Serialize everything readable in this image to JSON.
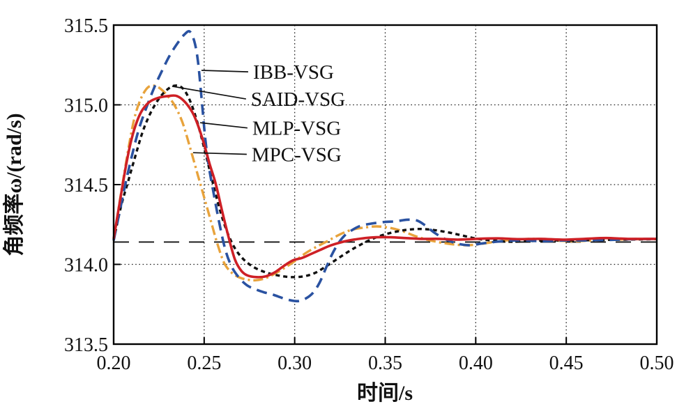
{
  "chart_data": {
    "type": "line",
    "title": "",
    "xlabel": "时间/s",
    "ylabel": "角频率ω/(rad/s)",
    "xlim": [
      0.2,
      0.5
    ],
    "ylim": [
      313.5,
      315.5
    ],
    "xticks": [
      0.2,
      0.25,
      0.3,
      0.35,
      0.4,
      0.45,
      0.5
    ],
    "yticks": [
      313.5,
      314.0,
      314.5,
      315.0,
      315.5
    ],
    "grid": "dotted",
    "grid_color": "#222222",
    "frame_color": "#000000",
    "reference_line": {
      "y": 314.14,
      "style": "long-dash",
      "color": "#111111"
    },
    "series": [
      {
        "name": "MPC-VSG",
        "color": "#E8A33C",
        "dash": "14 5 3 5",
        "width": 3.4,
        "points": [
          [
            0.2,
            314.15
          ],
          [
            0.203,
            314.37
          ],
          [
            0.206,
            314.58
          ],
          [
            0.209,
            314.78
          ],
          [
            0.212,
            314.94
          ],
          [
            0.2155,
            315.05
          ],
          [
            0.219,
            315.11
          ],
          [
            0.2225,
            315.12
          ],
          [
            0.226,
            315.1
          ],
          [
            0.2295,
            315.06
          ],
          [
            0.2335,
            315.0
          ],
          [
            0.238,
            314.89
          ],
          [
            0.2425,
            314.72
          ],
          [
            0.2465,
            314.56
          ],
          [
            0.25,
            314.42
          ],
          [
            0.2535,
            314.28
          ],
          [
            0.257,
            314.14
          ],
          [
            0.261,
            314.01
          ],
          [
            0.265,
            313.95
          ],
          [
            0.269,
            313.92
          ],
          [
            0.2735,
            313.905
          ],
          [
            0.278,
            313.9
          ],
          [
            0.283,
            313.91
          ],
          [
            0.288,
            313.935
          ],
          [
            0.294,
            313.975
          ],
          [
            0.3,
            314.02
          ],
          [
            0.306,
            314.07
          ],
          [
            0.312,
            314.11
          ],
          [
            0.318,
            314.145
          ],
          [
            0.3245,
            314.185
          ],
          [
            0.331,
            314.215
          ],
          [
            0.338,
            314.23
          ],
          [
            0.345,
            314.238
          ],
          [
            0.352,
            314.23
          ],
          [
            0.359,
            314.21
          ],
          [
            0.366,
            314.18
          ],
          [
            0.373,
            314.155
          ],
          [
            0.38,
            314.138
          ],
          [
            0.388,
            314.125
          ],
          [
            0.396,
            314.12
          ],
          [
            0.404,
            314.13
          ],
          [
            0.413,
            314.145
          ],
          [
            0.422,
            314.155
          ],
          [
            0.432,
            314.16
          ],
          [
            0.443,
            314.15
          ],
          [
            0.454,
            314.145
          ],
          [
            0.465,
            314.15
          ],
          [
            0.477,
            314.155
          ],
          [
            0.49,
            314.158
          ],
          [
            0.5,
            314.16
          ]
        ]
      },
      {
        "name": "SAID-VSG",
        "color": "#111111",
        "dash": "6 5",
        "width": 3.4,
        "points": [
          [
            0.2,
            314.15
          ],
          [
            0.204,
            314.36
          ],
          [
            0.208,
            314.52
          ],
          [
            0.212,
            314.68
          ],
          [
            0.216,
            314.83
          ],
          [
            0.22,
            314.94
          ],
          [
            0.2245,
            315.03
          ],
          [
            0.229,
            315.09
          ],
          [
            0.2335,
            315.12
          ],
          [
            0.238,
            315.105
          ],
          [
            0.242,
            315.03
          ],
          [
            0.246,
            314.9
          ],
          [
            0.25,
            314.73
          ],
          [
            0.2535,
            314.57
          ],
          [
            0.2575,
            314.39
          ],
          [
            0.2615,
            314.24
          ],
          [
            0.266,
            314.12
          ],
          [
            0.271,
            314.04
          ],
          [
            0.277,
            313.985
          ],
          [
            0.284,
            313.95
          ],
          [
            0.291,
            313.93
          ],
          [
            0.298,
            313.92
          ],
          [
            0.305,
            313.925
          ],
          [
            0.311,
            313.945
          ],
          [
            0.317,
            313.985
          ],
          [
            0.323,
            314.03
          ],
          [
            0.329,
            314.075
          ],
          [
            0.335,
            314.115
          ],
          [
            0.342,
            314.155
          ],
          [
            0.349,
            314.185
          ],
          [
            0.356,
            314.205
          ],
          [
            0.363,
            314.218
          ],
          [
            0.37,
            314.222
          ],
          [
            0.377,
            314.215
          ],
          [
            0.385,
            314.2
          ],
          [
            0.393,
            314.18
          ],
          [
            0.401,
            314.16
          ],
          [
            0.409,
            314.15
          ],
          [
            0.418,
            314.142
          ],
          [
            0.428,
            314.145
          ],
          [
            0.44,
            314.15
          ],
          [
            0.452,
            314.15
          ],
          [
            0.465,
            314.152
          ],
          [
            0.48,
            314.155
          ],
          [
            0.5,
            314.158
          ]
        ]
      },
      {
        "name": "IBB-VSG",
        "color": "#2A52A1",
        "dash": "15 9",
        "width": 3.6,
        "points": [
          [
            0.2,
            314.15
          ],
          [
            0.2035,
            314.34
          ],
          [
            0.207,
            314.53
          ],
          [
            0.2105,
            314.7
          ],
          [
            0.214,
            314.85
          ],
          [
            0.218,
            314.98
          ],
          [
            0.2225,
            315.11
          ],
          [
            0.227,
            315.22
          ],
          [
            0.231,
            315.31
          ],
          [
            0.2355,
            315.39
          ],
          [
            0.239,
            315.44
          ],
          [
            0.242,
            315.46
          ],
          [
            0.2445,
            315.4
          ],
          [
            0.2465,
            315.28
          ],
          [
            0.2485,
            315.05
          ],
          [
            0.2505,
            314.8
          ],
          [
            0.2525,
            314.62
          ],
          [
            0.255,
            314.46
          ],
          [
            0.258,
            314.28
          ],
          [
            0.2615,
            314.1
          ],
          [
            0.265,
            313.99
          ],
          [
            0.269,
            313.92
          ],
          [
            0.2735,
            313.87
          ],
          [
            0.278,
            313.845
          ],
          [
            0.283,
            313.825
          ],
          [
            0.288,
            313.81
          ],
          [
            0.293,
            313.79
          ],
          [
            0.2975,
            313.775
          ],
          [
            0.302,
            313.77
          ],
          [
            0.306,
            313.785
          ],
          [
            0.31,
            313.82
          ],
          [
            0.3135,
            313.88
          ],
          [
            0.317,
            313.97
          ],
          [
            0.3205,
            314.06
          ],
          [
            0.324,
            314.13
          ],
          [
            0.3275,
            314.18
          ],
          [
            0.331,
            314.21
          ],
          [
            0.336,
            314.24
          ],
          [
            0.342,
            314.255
          ],
          [
            0.349,
            314.265
          ],
          [
            0.356,
            314.27
          ],
          [
            0.362,
            314.28
          ],
          [
            0.3675,
            314.275
          ],
          [
            0.372,
            314.245
          ],
          [
            0.377,
            314.2
          ],
          [
            0.382,
            314.165
          ],
          [
            0.387,
            314.14
          ],
          [
            0.392,
            314.125
          ],
          [
            0.397,
            314.12
          ],
          [
            0.403,
            314.13
          ],
          [
            0.41,
            314.14
          ],
          [
            0.418,
            314.148
          ],
          [
            0.427,
            314.15
          ],
          [
            0.437,
            314.145
          ],
          [
            0.448,
            314.15
          ],
          [
            0.46,
            314.15
          ],
          [
            0.473,
            314.153
          ],
          [
            0.486,
            314.158
          ],
          [
            0.5,
            314.16
          ]
        ]
      },
      {
        "name": "MLP-VSG",
        "color": "#CE2026",
        "dash": null,
        "width": 3.6,
        "points": [
          [
            0.2,
            314.16
          ],
          [
            0.2025,
            314.33
          ],
          [
            0.205,
            314.5
          ],
          [
            0.2075,
            314.66
          ],
          [
            0.21,
            314.79
          ],
          [
            0.213,
            314.9
          ],
          [
            0.216,
            314.97
          ],
          [
            0.22,
            315.02
          ],
          [
            0.225,
            315.045
          ],
          [
            0.23,
            315.055
          ],
          [
            0.235,
            315.055
          ],
          [
            0.24,
            315.01
          ],
          [
            0.2445,
            314.93
          ],
          [
            0.249,
            314.79
          ],
          [
            0.253,
            314.63
          ],
          [
            0.2565,
            314.5
          ],
          [
            0.26,
            314.33
          ],
          [
            0.2635,
            314.17
          ],
          [
            0.267,
            314.03
          ],
          [
            0.2705,
            313.96
          ],
          [
            0.274,
            313.93
          ],
          [
            0.279,
            313.92
          ],
          [
            0.284,
            313.925
          ],
          [
            0.289,
            313.95
          ],
          [
            0.294,
            313.99
          ],
          [
            0.299,
            314.025
          ],
          [
            0.304,
            314.04
          ],
          [
            0.309,
            314.065
          ],
          [
            0.314,
            314.09
          ],
          [
            0.319,
            314.115
          ],
          [
            0.3245,
            314.135
          ],
          [
            0.33,
            314.15
          ],
          [
            0.337,
            314.162
          ],
          [
            0.345,
            314.17
          ],
          [
            0.353,
            314.17
          ],
          [
            0.361,
            314.165
          ],
          [
            0.37,
            314.16
          ],
          [
            0.38,
            314.16
          ],
          [
            0.39,
            314.155
          ],
          [
            0.4,
            314.16
          ],
          [
            0.412,
            314.163
          ],
          [
            0.424,
            314.158
          ],
          [
            0.436,
            314.16
          ],
          [
            0.448,
            314.155
          ],
          [
            0.46,
            314.16
          ],
          [
            0.472,
            314.165
          ],
          [
            0.484,
            314.16
          ],
          [
            0.5,
            314.16
          ]
        ]
      }
    ],
    "annotations": [
      {
        "text": "IBB-VSG",
        "label_x": 0.277,
        "label_y": 315.207,
        "tip_x": 0.2485,
        "tip_y": 315.216
      },
      {
        "text": "SAID-VSG",
        "label_x": 0.2758,
        "label_y": 315.037,
        "tip_x": 0.2323,
        "tip_y": 315.116
      },
      {
        "text": "MLP-VSG",
        "label_x": 0.2766,
        "label_y": 314.855,
        "tip_x": 0.2478,
        "tip_y": 314.888
      },
      {
        "text": "MPC-VSG",
        "label_x": 0.2762,
        "label_y": 314.69,
        "tip_x": 0.2439,
        "tip_y": 314.7
      }
    ],
    "tick_format": {
      "x_decimals": 2,
      "y_decimals": 1
    },
    "legend_position": "annotated-inline",
    "axis_font_px": 28,
    "label_font_px": 30
  }
}
